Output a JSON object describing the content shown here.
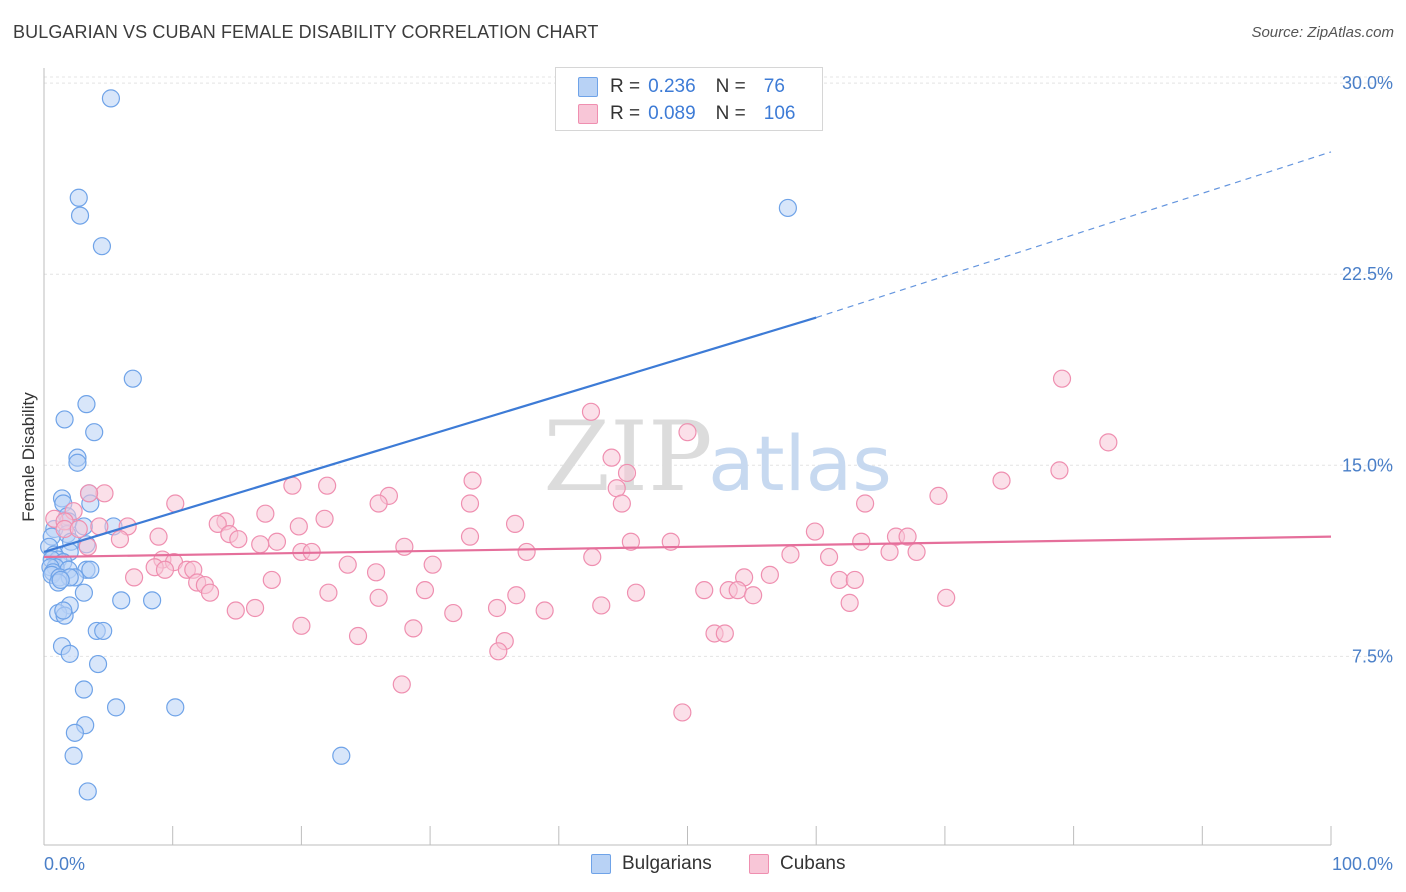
{
  "title": "BULGARIAN VS CUBAN FEMALE DISABILITY CORRELATION CHART",
  "source": "Source: ZipAtlas.com",
  "watermark": {
    "zip": "ZIP",
    "atlas": "atlas"
  },
  "legend": {
    "rows": [
      {
        "r_label": "R =",
        "r_value": "0.236",
        "n_label": "N =",
        "n_value": "76",
        "color": "#6fa3e8",
        "fill": "#b8d2f5"
      },
      {
        "r_label": "R =",
        "r_value": "0.089",
        "n_label": "N =",
        "n_value": "106",
        "color": "#ef8fb0",
        "fill": "#f8c6d7"
      }
    ]
  },
  "bottom_legend": [
    {
      "label": "Bulgarians",
      "color": "#6fa3e8",
      "fill": "#b8d2f5"
    },
    {
      "label": "Cubans",
      "color": "#ef8fb0",
      "fill": "#f8c6d7"
    }
  ],
  "chart_data": {
    "type": "scatter",
    "title": "BULGARIAN VS CUBAN FEMALE DISABILITY CORRELATION CHART",
    "ylabel": "Female Disability",
    "xlabel": "",
    "xlim": [
      0,
      100
    ],
    "ylim": [
      0,
      31
    ],
    "x_ticks": [
      "0.0%",
      "100.0%"
    ],
    "y_ticks": [
      {
        "value": 7.5,
        "label": "7.5%"
      },
      {
        "value": 15.0,
        "label": "15.0%"
      },
      {
        "value": 22.5,
        "label": "22.5%"
      },
      {
        "value": 30.0,
        "label": "30.0%"
      }
    ],
    "grid": true,
    "legend_position": "top-center",
    "series": [
      {
        "name": "Bulgarians",
        "color": "#3d7bd6",
        "marker_fill": "#b8d2f5",
        "marker_stroke": "#6fa3e8",
        "trend": {
          "x0": 0,
          "y0": 11.6,
          "x1": 60,
          "y1": 20.8,
          "dashed_to_x": 100,
          "dashed_to_y": 27.3
        },
        "points": [
          [
            5.2,
            29.4
          ],
          [
            2.7,
            25.5
          ],
          [
            2.8,
            24.8
          ],
          [
            4.5,
            23.6
          ],
          [
            57.8,
            25.1
          ],
          [
            6.9,
            18.4
          ],
          [
            3.3,
            17.4
          ],
          [
            1.6,
            16.8
          ],
          [
            3.9,
            16.3
          ],
          [
            2.6,
            15.3
          ],
          [
            2.6,
            15.1
          ],
          [
            3.5,
            13.9
          ],
          [
            1.4,
            13.7
          ],
          [
            1.5,
            13.5
          ],
          [
            3.6,
            13.5
          ],
          [
            1.8,
            13.0
          ],
          [
            1.9,
            12.8
          ],
          [
            3.1,
            12.6
          ],
          [
            5.4,
            12.6
          ],
          [
            0.8,
            12.5
          ],
          [
            1.8,
            12.3
          ],
          [
            0.6,
            12.2
          ],
          [
            2.1,
            12.0
          ],
          [
            3.3,
            11.9
          ],
          [
            0.4,
            11.8
          ],
          [
            2.0,
            11.6
          ],
          [
            0.8,
            11.5
          ],
          [
            1.1,
            11.3
          ],
          [
            0.6,
            11.3
          ],
          [
            1.5,
            11.2
          ],
          [
            0.9,
            11.0
          ],
          [
            0.5,
            11.0
          ],
          [
            1.9,
            10.9
          ],
          [
            3.3,
            10.9
          ],
          [
            3.6,
            10.9
          ],
          [
            0.7,
            10.8
          ],
          [
            0.6,
            10.7
          ],
          [
            1.2,
            10.6
          ],
          [
            2.4,
            10.6
          ],
          [
            2.0,
            10.6
          ],
          [
            1.1,
            10.4
          ],
          [
            1.3,
            10.5
          ],
          [
            3.1,
            10.0
          ],
          [
            6.0,
            9.7
          ],
          [
            8.4,
            9.7
          ],
          [
            2.0,
            9.5
          ],
          [
            1.1,
            9.2
          ],
          [
            1.6,
            9.1
          ],
          [
            1.5,
            9.3
          ],
          [
            4.1,
            8.5
          ],
          [
            4.6,
            8.5
          ],
          [
            1.4,
            7.9
          ],
          [
            2.0,
            7.6
          ],
          [
            4.2,
            7.2
          ],
          [
            3.1,
            6.2
          ],
          [
            5.6,
            5.5
          ],
          [
            10.2,
            5.5
          ],
          [
            3.2,
            4.8
          ],
          [
            2.4,
            4.5
          ],
          [
            2.3,
            3.6
          ],
          [
            23.1,
            3.6
          ],
          [
            3.4,
            2.2
          ]
        ]
      },
      {
        "name": "Cubans",
        "color": "#e56f9b",
        "marker_fill": "#f8c6d7",
        "marker_stroke": "#ef8fb0",
        "trend": {
          "x0": 0,
          "y0": 11.4,
          "x1": 100,
          "y1": 12.2
        },
        "points": [
          [
            79.1,
            18.4
          ],
          [
            42.5,
            17.1
          ],
          [
            50.0,
            16.3
          ],
          [
            82.7,
            15.9
          ],
          [
            44.1,
            15.3
          ],
          [
            45.3,
            14.7
          ],
          [
            78.9,
            14.8
          ],
          [
            33.3,
            14.4
          ],
          [
            74.4,
            14.4
          ],
          [
            19.3,
            14.2
          ],
          [
            22.0,
            14.2
          ],
          [
            44.5,
            14.1
          ],
          [
            4.7,
            13.9
          ],
          [
            3.5,
            13.9
          ],
          [
            26.8,
            13.8
          ],
          [
            69.5,
            13.8
          ],
          [
            10.2,
            13.5
          ],
          [
            26.0,
            13.5
          ],
          [
            33.1,
            13.5
          ],
          [
            44.9,
            13.5
          ],
          [
            63.8,
            13.5
          ],
          [
            2.3,
            13.2
          ],
          [
            17.2,
            13.1
          ],
          [
            0.8,
            12.9
          ],
          [
            1.6,
            12.8
          ],
          [
            14.1,
            12.8
          ],
          [
            21.8,
            12.9
          ],
          [
            13.5,
            12.7
          ],
          [
            19.8,
            12.6
          ],
          [
            36.6,
            12.7
          ],
          [
            4.3,
            12.6
          ],
          [
            6.5,
            12.6
          ],
          [
            1.6,
            12.5
          ],
          [
            2.7,
            12.5
          ],
          [
            59.9,
            12.4
          ],
          [
            14.4,
            12.3
          ],
          [
            8.9,
            12.2
          ],
          [
            33.1,
            12.2
          ],
          [
            66.2,
            12.2
          ],
          [
            67.1,
            12.2
          ],
          [
            5.9,
            12.1
          ],
          [
            15.1,
            12.1
          ],
          [
            45.6,
            12.0
          ],
          [
            18.1,
            12.0
          ],
          [
            63.5,
            12.0
          ],
          [
            48.7,
            12.0
          ],
          [
            16.8,
            11.9
          ],
          [
            28.0,
            11.8
          ],
          [
            3.4,
            11.8
          ],
          [
            37.5,
            11.6
          ],
          [
            20.0,
            11.6
          ],
          [
            20.8,
            11.6
          ],
          [
            65.7,
            11.6
          ],
          [
            67.8,
            11.6
          ],
          [
            58.0,
            11.5
          ],
          [
            42.6,
            11.4
          ],
          [
            61.0,
            11.4
          ],
          [
            9.2,
            11.3
          ],
          [
            23.6,
            11.1
          ],
          [
            10.1,
            11.2
          ],
          [
            30.2,
            11.1
          ],
          [
            8.6,
            11.0
          ],
          [
            11.1,
            10.9
          ],
          [
            9.4,
            10.9
          ],
          [
            11.6,
            10.9
          ],
          [
            25.8,
            10.8
          ],
          [
            56.4,
            10.7
          ],
          [
            54.4,
            10.6
          ],
          [
            7.0,
            10.6
          ],
          [
            11.9,
            10.4
          ],
          [
            17.7,
            10.5
          ],
          [
            61.8,
            10.5
          ],
          [
            63.0,
            10.5
          ],
          [
            12.5,
            10.3
          ],
          [
            12.9,
            10.0
          ],
          [
            22.1,
            10.0
          ],
          [
            29.6,
            10.1
          ],
          [
            51.3,
            10.1
          ],
          [
            53.2,
            10.1
          ],
          [
            53.9,
            10.1
          ],
          [
            36.7,
            9.9
          ],
          [
            46.0,
            10.0
          ],
          [
            26.0,
            9.8
          ],
          [
            55.1,
            9.9
          ],
          [
            70.1,
            9.8
          ],
          [
            62.6,
            9.6
          ],
          [
            43.3,
            9.5
          ],
          [
            16.4,
            9.4
          ],
          [
            14.9,
            9.3
          ],
          [
            35.2,
            9.4
          ],
          [
            38.9,
            9.3
          ],
          [
            31.8,
            9.2
          ],
          [
            20.0,
            8.7
          ],
          [
            28.7,
            8.6
          ],
          [
            24.4,
            8.3
          ],
          [
            52.1,
            8.4
          ],
          [
            52.9,
            8.4
          ],
          [
            35.8,
            8.1
          ],
          [
            35.3,
            7.7
          ],
          [
            27.8,
            6.4
          ],
          [
            49.6,
            5.3
          ]
        ]
      }
    ]
  }
}
